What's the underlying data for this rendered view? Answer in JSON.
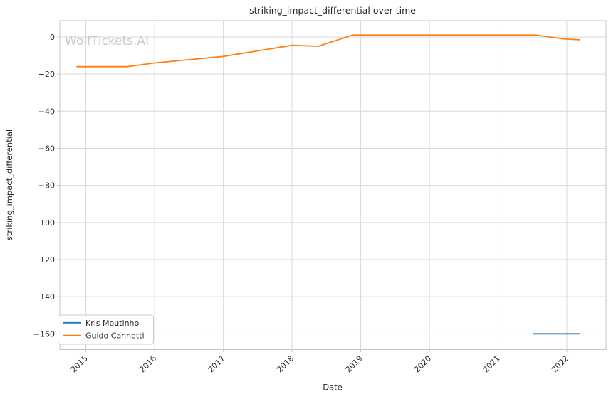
{
  "watermark": "WolfTickets.AI",
  "chart_data": {
    "type": "line",
    "title": "striking_impact_differential over time",
    "xlabel": "Date",
    "ylabel": "striking_impact_differential",
    "x_ticks": [
      2015,
      2016,
      2017,
      2018,
      2019,
      2020,
      2021,
      2022
    ],
    "y_ticks": [
      0,
      -20,
      -40,
      -60,
      -80,
      -100,
      -120,
      -140,
      -160
    ],
    "xlim": [
      2014.62,
      2022.57
    ],
    "ylim": [
      -168.5,
      8.8
    ],
    "grid": true,
    "legend_position": "lower left",
    "series": [
      {
        "name": "Kris Moutinho",
        "color": "#1f77b4",
        "x": [
          2021.51,
          2022.18
        ],
        "y": [
          -160,
          -160
        ]
      },
      {
        "name": "Guido Cannetti",
        "color": "#ff7f0e",
        "x": [
          2014.87,
          2015.6,
          2016.0,
          2017.0,
          2018.0,
          2018.38,
          2018.88,
          2021.55,
          2021.95,
          2022.19
        ],
        "y": [
          -16,
          -16,
          -14,
          -10.5,
          -4.5,
          -5,
          1,
          1,
          -1,
          -1.5
        ]
      }
    ]
  },
  "style": {
    "grid_color": "#d9d9d9",
    "spine_color": "#c4c4c4",
    "tick_color": "#c4c4c4",
    "text_color": "#262626",
    "background": "#ffffff"
  }
}
